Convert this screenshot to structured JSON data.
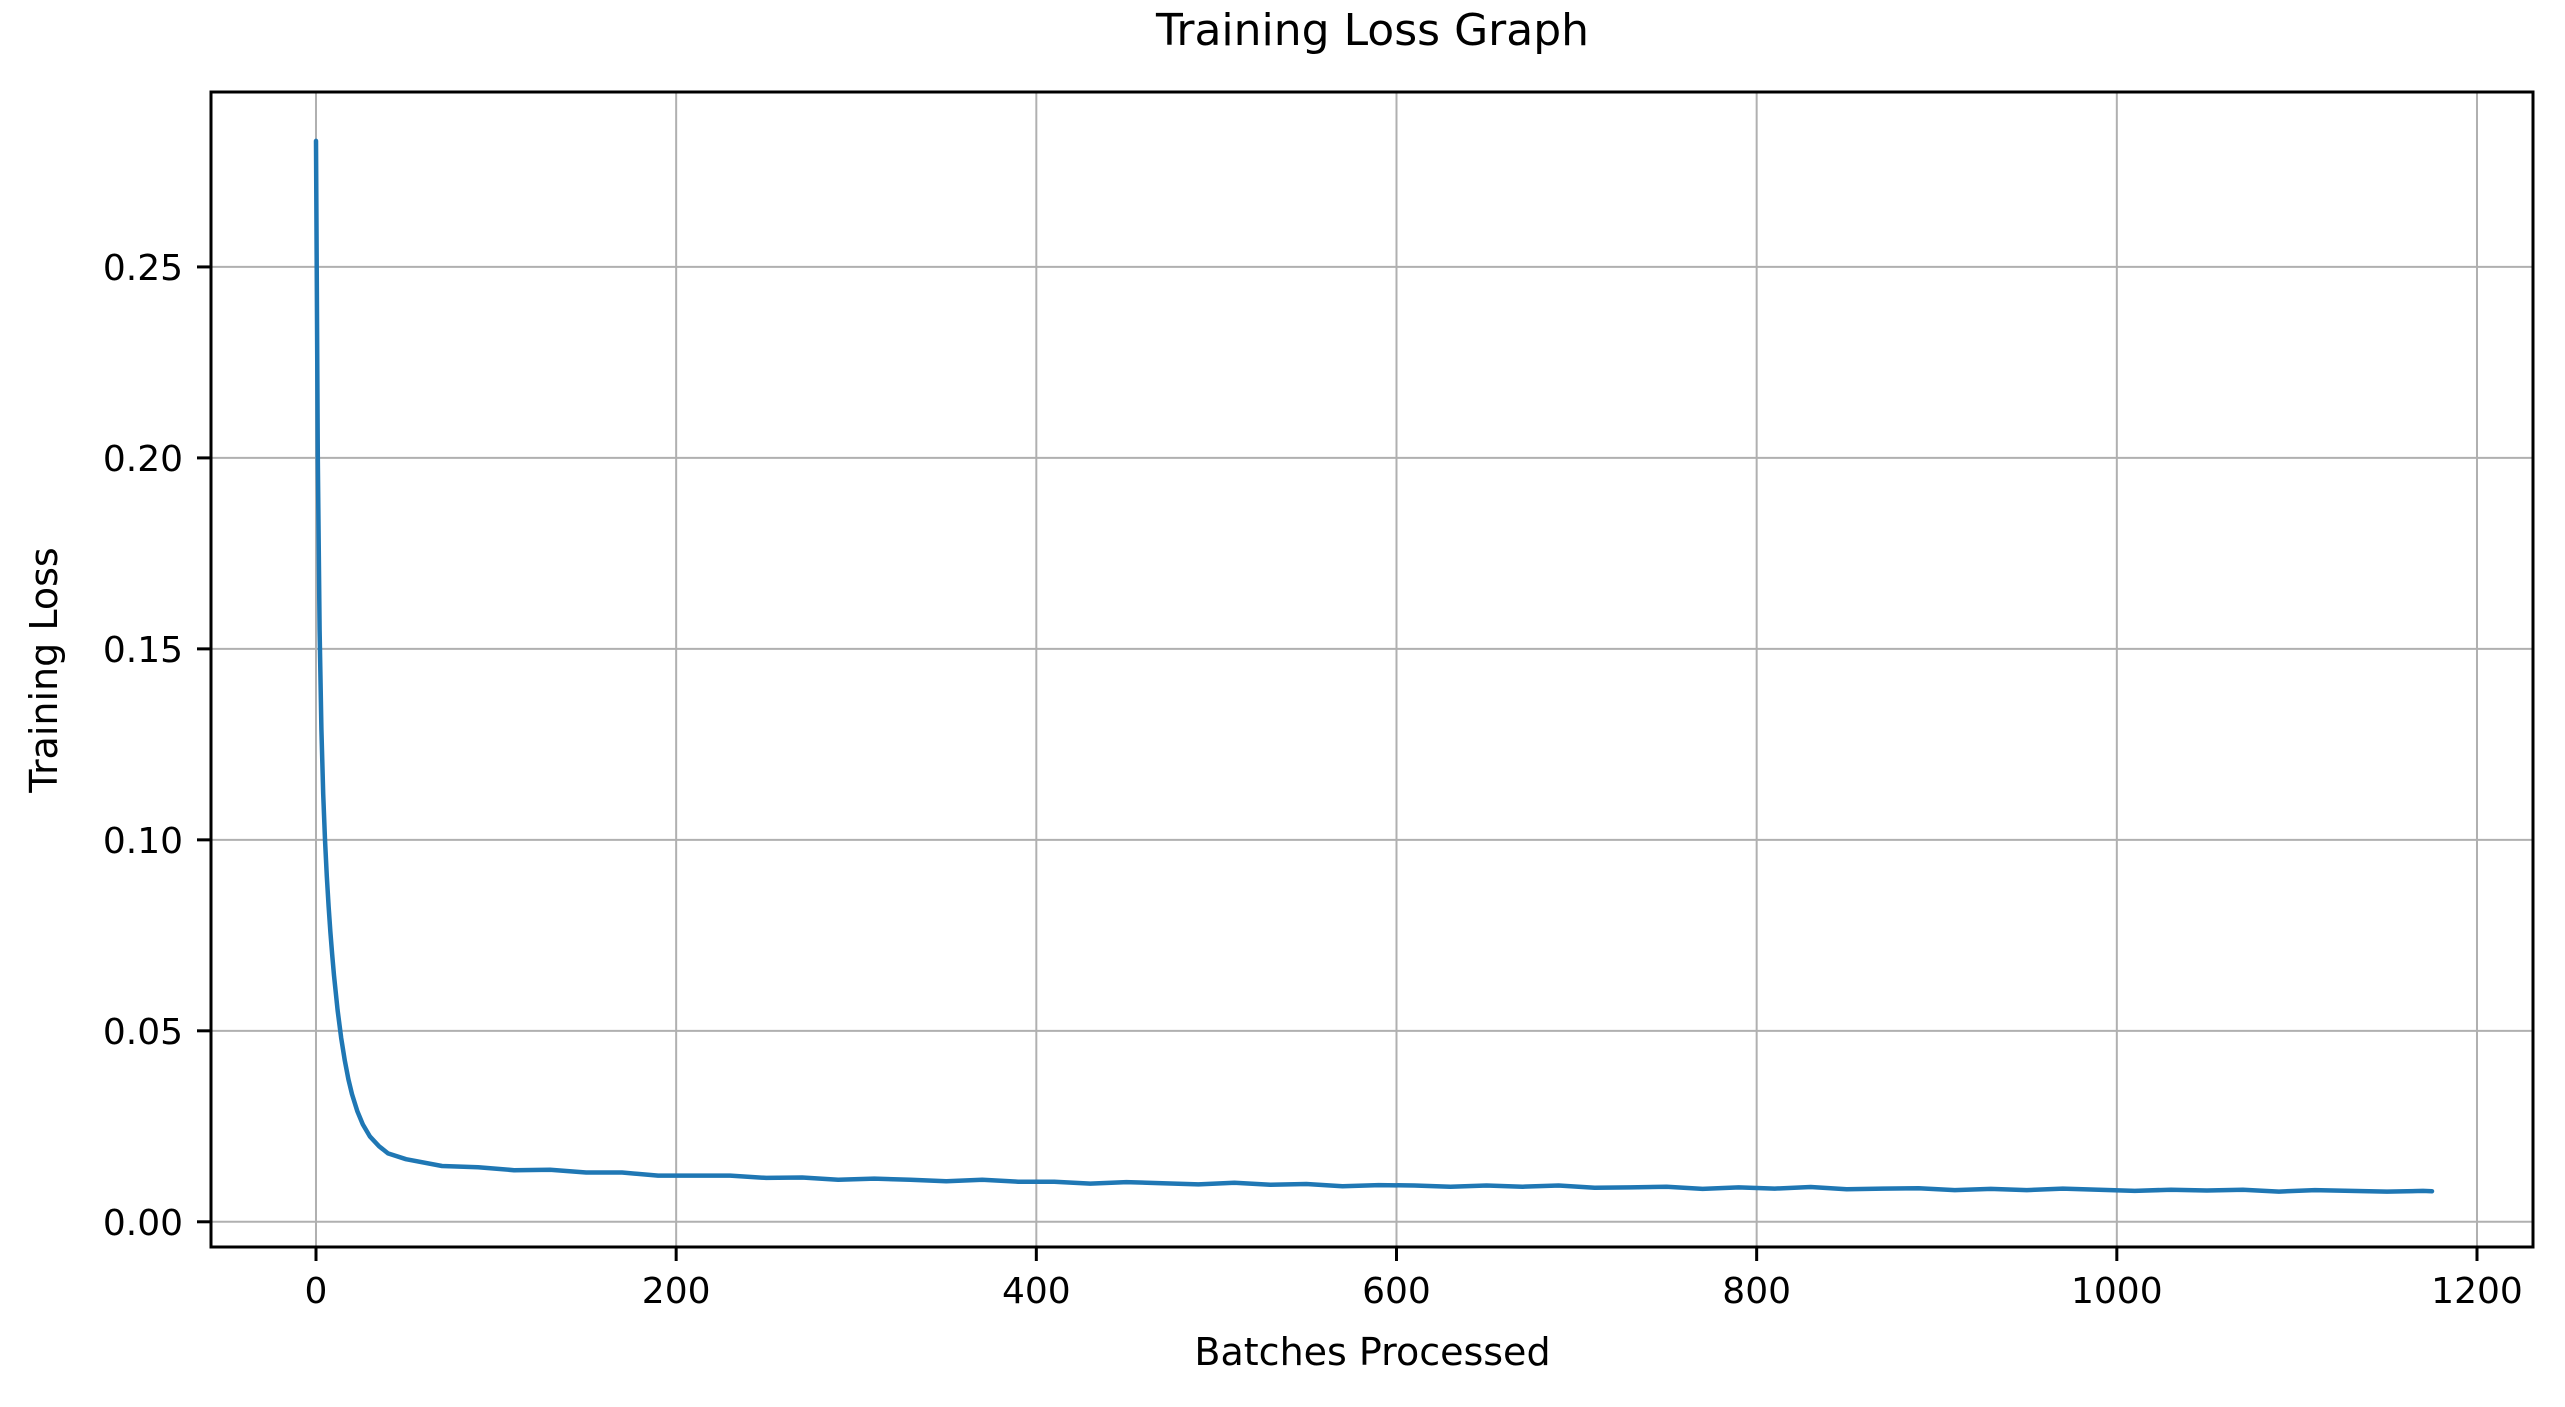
{
  "chart_data": {
    "type": "line",
    "title": "Training Loss Graph",
    "xlabel": "Batches Processed",
    "ylabel": "Training Loss",
    "grid": true,
    "legend_position": "none",
    "xlim": [
      -58.3,
      1231.1
    ],
    "ylim": [
      -0.0066,
      0.2958
    ],
    "xticks": {
      "values": [
        0,
        200,
        400,
        600,
        800,
        1000,
        1200
      ],
      "labels": [
        "0",
        "200",
        "400",
        "600",
        "800",
        "1000",
        "1200"
      ]
    },
    "yticks": {
      "values": [
        0.0,
        0.05,
        0.1,
        0.15,
        0.2,
        0.25
      ],
      "labels": [
        "0.00",
        "0.05",
        "0.10",
        "0.15",
        "0.20",
        "0.25"
      ]
    },
    "colors": {
      "line": "#1f77b4",
      "grid": "#b0b0b0",
      "spine": "#000000",
      "text": "#000000",
      "background": "#ffffff"
    },
    "series": [
      {
        "name": "training_loss",
        "points": [
          [
            0,
            0.283
          ],
          [
            1,
            0.2
          ],
          [
            2,
            0.155
          ],
          [
            3,
            0.129
          ],
          [
            4,
            0.112
          ],
          [
            5,
            0.1
          ],
          [
            6,
            0.0905
          ],
          [
            7,
            0.0826
          ],
          [
            8,
            0.0758
          ],
          [
            9,
            0.0699
          ],
          [
            10,
            0.0645
          ],
          [
            12,
            0.0554
          ],
          [
            14,
            0.0481
          ],
          [
            16,
            0.0422
          ],
          [
            18,
            0.0373
          ],
          [
            20,
            0.0334
          ],
          [
            23,
            0.0289
          ],
          [
            26,
            0.0255
          ],
          [
            30,
            0.0223
          ],
          [
            35,
            0.0198
          ],
          [
            40,
            0.0179
          ],
          [
            50,
            0.0164
          ],
          [
            70,
            0.0146
          ],
          [
            90,
            0.0143
          ],
          [
            110,
            0.0135
          ],
          [
            130,
            0.0136
          ],
          [
            150,
            0.0129
          ],
          [
            170,
            0.0129
          ],
          [
            190,
            0.0121
          ],
          [
            210,
            0.0121
          ],
          [
            230,
            0.0121
          ],
          [
            250,
            0.0115
          ],
          [
            270,
            0.0116
          ],
          [
            290,
            0.011
          ],
          [
            310,
            0.0113
          ],
          [
            330,
            0.011
          ],
          [
            350,
            0.0106
          ],
          [
            370,
            0.011
          ],
          [
            390,
            0.0105
          ],
          [
            410,
            0.0105
          ],
          [
            430,
            0.01
          ],
          [
            450,
            0.0104
          ],
          [
            470,
            0.0101
          ],
          [
            490,
            0.0098
          ],
          [
            510,
            0.0102
          ],
          [
            530,
            0.0097
          ],
          [
            550,
            0.0099
          ],
          [
            570,
            0.0093
          ],
          [
            590,
            0.0096
          ],
          [
            610,
            0.0095
          ],
          [
            630,
            0.0092
          ],
          [
            650,
            0.0095
          ],
          [
            670,
            0.0092
          ],
          [
            690,
            0.0095
          ],
          [
            710,
            0.0089
          ],
          [
            730,
            0.009
          ],
          [
            750,
            0.0092
          ],
          [
            770,
            0.0086
          ],
          [
            790,
            0.009
          ],
          [
            810,
            0.0087
          ],
          [
            830,
            0.0091
          ],
          [
            850,
            0.0085
          ],
          [
            870,
            0.0087
          ],
          [
            890,
            0.0088
          ],
          [
            910,
            0.0083
          ],
          [
            930,
            0.0086
          ],
          [
            950,
            0.0083
          ],
          [
            970,
            0.0087
          ],
          [
            990,
            0.0084
          ],
          [
            1010,
            0.0081
          ],
          [
            1030,
            0.0084
          ],
          [
            1050,
            0.0082
          ],
          [
            1070,
            0.0084
          ],
          [
            1090,
            0.0079
          ],
          [
            1110,
            0.0083
          ],
          [
            1130,
            0.0081
          ],
          [
            1150,
            0.0079
          ],
          [
            1170,
            0.0081
          ],
          [
            1175,
            0.008
          ]
        ]
      }
    ]
  }
}
